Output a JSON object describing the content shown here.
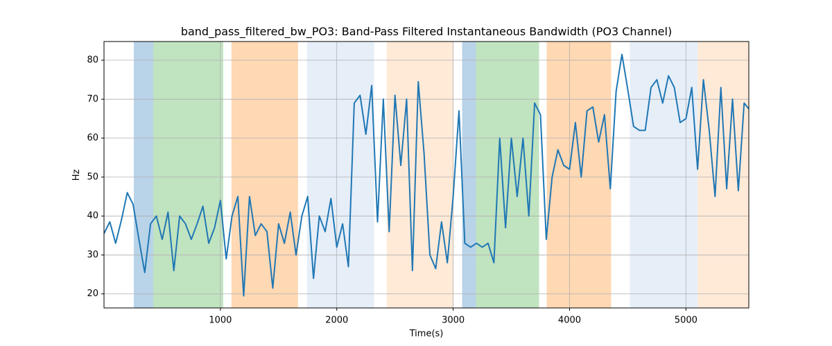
{
  "chart_data": {
    "type": "line",
    "title": "band_pass_filtered_bw_PO3: Band-Pass Filtered Instantaneous Bandwidth (PO3 Channel)",
    "xlabel": "Time(s)",
    "ylabel": "Hz",
    "xlim": [
      0,
      5540
    ],
    "ylim": [
      16.4,
      84.8
    ],
    "xticks": [
      1000,
      2000,
      3000,
      4000,
      5000
    ],
    "yticks": [
      20,
      30,
      40,
      50,
      60,
      70,
      80
    ],
    "grid": true,
    "spans": [
      {
        "start": 256,
        "end": 423,
        "color": "#b9d3e9"
      },
      {
        "start": 423,
        "end": 1024,
        "color": "#c0e3c0"
      },
      {
        "start": 1095,
        "end": 1667,
        "color": "#ffd8b4"
      },
      {
        "start": 1744,
        "end": 2321,
        "color": "#e6eef8"
      },
      {
        "start": 2429,
        "end": 3000,
        "color": "#ffead8"
      },
      {
        "start": 3077,
        "end": 3196,
        "color": "#b9d3e9"
      },
      {
        "start": 3196,
        "end": 3738,
        "color": "#c0e3c0"
      },
      {
        "start": 3804,
        "end": 4357,
        "color": "#ffd8b4"
      },
      {
        "start": 4518,
        "end": 5101,
        "color": "#e6eef8"
      },
      {
        "start": 5101,
        "end": 5540,
        "color": "#ffead8"
      }
    ],
    "series": [
      {
        "color": "#1f77b4",
        "x": [
          0,
          50,
          100,
          150,
          200,
          250,
          300,
          350,
          400,
          450,
          500,
          550,
          600,
          650,
          700,
          750,
          800,
          850,
          900,
          950,
          1000,
          1050,
          1100,
          1150,
          1200,
          1250,
          1300,
          1350,
          1400,
          1450,
          1500,
          1550,
          1600,
          1650,
          1700,
          1750,
          1800,
          1850,
          1900,
          1950,
          2000,
          2050,
          2100,
          2150,
          2200,
          2250,
          2300,
          2350,
          2400,
          2450,
          2500,
          2550,
          2600,
          2650,
          2700,
          2750,
          2800,
          2850,
          2900,
          2950,
          3000,
          3050,
          3100,
          3150,
          3200,
          3250,
          3300,
          3350,
          3400,
          3450,
          3500,
          3550,
          3600,
          3650,
          3700,
          3750,
          3800,
          3850,
          3900,
          3950,
          4000,
          4050,
          4100,
          4150,
          4200,
          4250,
          4300,
          4350,
          4400,
          4450,
          4500,
          4550,
          4600,
          4650,
          4700,
          4750,
          4800,
          4850,
          4900,
          4950,
          5000,
          5050,
          5100,
          5150,
          5200,
          5250,
          5300,
          5350,
          5400,
          5450,
          5500,
          5540
        ],
        "values": [
          35.5,
          38.5,
          33,
          39,
          46,
          43,
          34,
          25.5,
          38,
          40,
          34,
          41,
          26,
          40,
          38,
          34,
          38,
          42.5,
          33,
          37,
          44,
          29,
          40,
          45,
          19.5,
          45,
          35,
          38,
          36,
          21.5,
          38,
          33,
          41,
          30,
          40,
          45,
          24,
          40,
          36,
          44.5,
          32,
          38,
          27,
          69,
          71,
          61,
          73.5,
          38.5,
          70,
          36,
          71,
          53,
          70,
          26,
          74.5,
          56,
          30,
          26.5,
          38.5,
          28,
          45,
          67,
          33,
          32,
          33,
          32,
          33,
          28,
          60,
          37,
          60,
          45,
          60,
          40,
          69,
          66,
          34,
          50,
          57,
          53,
          52,
          64,
          50,
          67,
          68,
          59,
          66,
          47,
          72,
          81.5,
          72.5,
          63,
          62,
          62,
          73,
          75,
          69,
          76,
          73,
          64,
          65,
          73,
          52,
          75,
          62,
          45,
          73,
          47,
          70,
          46.5,
          69,
          67.5
        ]
      }
    ]
  }
}
